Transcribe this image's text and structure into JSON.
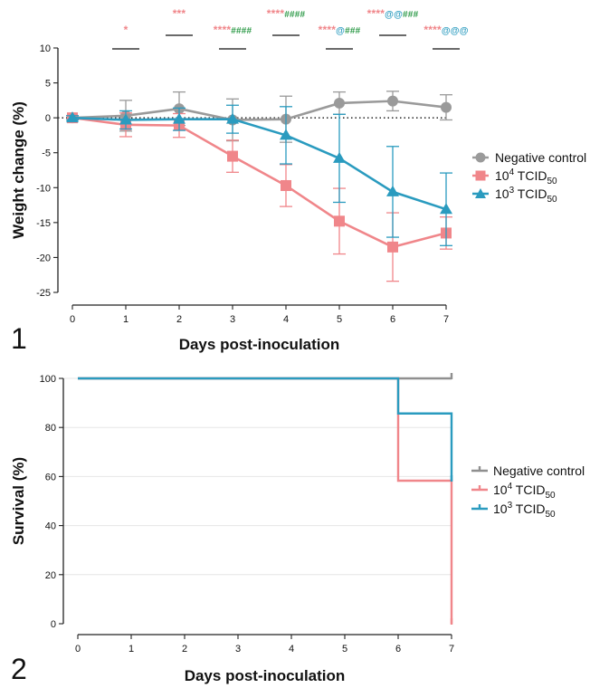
{
  "chart_data": [
    {
      "type": "line",
      "panel_label": "1",
      "xlabel": "Days post-inoculation",
      "ylabel": "Weight change (%)",
      "x": [
        0,
        1,
        2,
        3,
        4,
        5,
        6,
        7
      ],
      "xticks": [
        "0",
        "1",
        "2",
        "3",
        "4",
        "5",
        "6",
        "7"
      ],
      "yticks": [
        "10",
        "5",
        "0",
        "-5",
        "-10",
        "-15",
        "-20",
        "-25"
      ],
      "xlim": [
        0,
        7
      ],
      "ylim": [
        -25,
        10
      ],
      "reference_line": 0,
      "legend_position": "right",
      "series": [
        {
          "name": "Negative control",
          "name_parts": [
            "Negative control",
            "",
            "",
            ""
          ],
          "marker": "circle",
          "color": "#9a9a9a",
          "values": [
            0,
            0.3,
            1.3,
            -0.3,
            -0.2,
            2.1,
            2.4,
            1.5
          ],
          "errors": [
            0.3,
            2.2,
            2.4,
            3.0,
            3.3,
            1.6,
            1.4,
            1.8
          ]
        },
        {
          "name": "10^4 TCID50",
          "name_parts": [
            "10",
            "4",
            " TCID",
            "50"
          ],
          "marker": "square",
          "color": "#f0868a",
          "values": [
            0,
            -1.0,
            -1.1,
            -5.5,
            -9.7,
            -14.8,
            -18.5,
            -16.5
          ],
          "errors": [
            0.3,
            1.7,
            1.7,
            2.3,
            3.0,
            4.7,
            4.9,
            2.3
          ]
        },
        {
          "name": "10^3 TCID50",
          "name_parts": [
            "10",
            "3",
            " TCID",
            "50"
          ],
          "marker": "triangle",
          "color": "#2a9bbf",
          "values": [
            0,
            -0.3,
            -0.2,
            -0.2,
            -2.5,
            -5.8,
            -10.6,
            -13.1
          ],
          "errors": [
            0.3,
            1.3,
            1.6,
            2.0,
            4.1,
            6.3,
            6.5,
            5.2
          ]
        }
      ],
      "annotations": [
        {
          "day": 1,
          "parts": [
            {
              "text": "*",
              "color": "#f0868a",
              "small": false
            }
          ]
        },
        {
          "day": 2,
          "parts": [
            {
              "text": "***",
              "color": "#f0868a",
              "small": false
            }
          ]
        },
        {
          "day": 3,
          "parts": [
            {
              "text": "****",
              "color": "#f0868a",
              "small": false
            },
            {
              "text": "####",
              "color": "#2d9a48",
              "small": true
            }
          ]
        },
        {
          "day": 4,
          "parts": [
            {
              "text": "****",
              "color": "#f0868a",
              "small": false
            },
            {
              "text": "####",
              "color": "#2d9a48",
              "small": true
            }
          ]
        },
        {
          "day": 5,
          "parts": [
            {
              "text": "****",
              "color": "#f0868a",
              "small": false
            },
            {
              "text": "@",
              "color": "#2a9bbf",
              "small": true
            },
            {
              "text": "###",
              "color": "#2d9a48",
              "small": true
            }
          ]
        },
        {
          "day": 6,
          "parts": [
            {
              "text": "****",
              "color": "#f0868a",
              "small": false
            },
            {
              "text": "@@",
              "color": "#2a9bbf",
              "small": true
            },
            {
              "text": "###",
              "color": "#2d9a48",
              "small": true
            }
          ]
        },
        {
          "day": 7,
          "parts": [
            {
              "text": "****",
              "color": "#f0868a",
              "small": false
            },
            {
              "text": "@@@",
              "color": "#2a9bbf",
              "small": true
            }
          ]
        }
      ]
    },
    {
      "type": "line",
      "step": true,
      "panel_label": "2",
      "xlabel": "Days post-inoculation",
      "ylabel": "Survival (%)",
      "x": [
        0,
        1,
        2,
        3,
        4,
        5,
        6,
        7
      ],
      "xticks": [
        "0",
        "1",
        "2",
        "3",
        "4",
        "5",
        "6",
        "7"
      ],
      "yticks": [
        "100",
        "80",
        "60",
        "40",
        "20",
        "0"
      ],
      "xlim": [
        0,
        7
      ],
      "ylim": [
        0,
        100
      ],
      "grid": true,
      "legend_position": "right",
      "series": [
        {
          "name": "Negative control",
          "name_parts": [
            "Negative control",
            "",
            "",
            ""
          ],
          "color": "#8f8f8f",
          "steps": [
            [
              0,
              100
            ],
            [
              7,
              100
            ]
          ]
        },
        {
          "name": "10^4 TCID50",
          "name_parts": [
            "10",
            "4",
            " TCID",
            "50"
          ],
          "color": "#f0868a",
          "steps": [
            [
              0,
              100
            ],
            [
              6,
              100
            ],
            [
              6,
              58.3
            ],
            [
              7,
              58.3
            ],
            [
              7,
              0
            ]
          ]
        },
        {
          "name": "10^3 TCID50",
          "name_parts": [
            "10",
            "3",
            " TCID",
            "50"
          ],
          "color": "#2a9bbf",
          "steps": [
            [
              0,
              100
            ],
            [
              6,
              100
            ],
            [
              6,
              85.7
            ],
            [
              7,
              85.7
            ],
            [
              7,
              58.3
            ]
          ]
        }
      ]
    }
  ]
}
